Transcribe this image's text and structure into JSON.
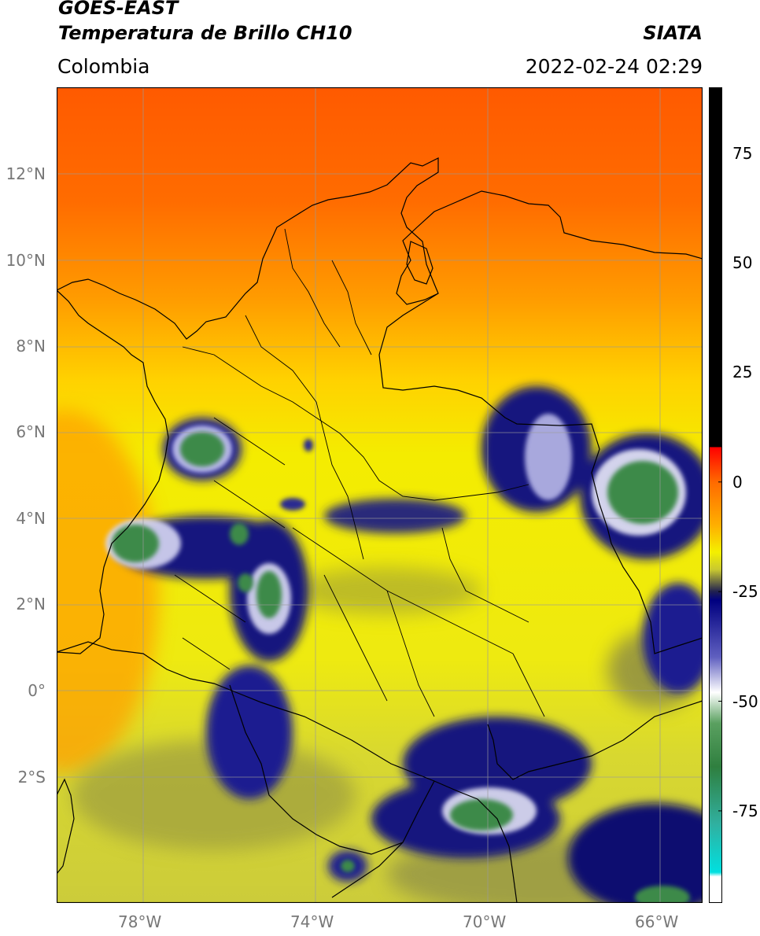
{
  "header": {
    "satellite": "GOES-EAST",
    "product": "Temperatura de Brillo CH10",
    "org": "SIATA",
    "region": "Colombia",
    "timestamp": "2022-02-24 02:29"
  },
  "axes": {
    "lat_labels": [
      "12°N",
      "10°N",
      "8°N",
      "6°N",
      "4°N",
      "2°N",
      "0°",
      "2°S"
    ],
    "lon_labels": [
      "78°W",
      "74°W",
      "70°W",
      "66°W"
    ]
  },
  "colorbar": {
    "tick_labels": [
      "75",
      "50",
      "25",
      "0",
      "-25",
      "-50",
      "-75"
    ],
    "tick_values": [
      75,
      50,
      25,
      0,
      -25,
      -50,
      -75
    ],
    "range": [
      -96,
      90
    ],
    "stops": [
      {
        "v": 90,
        "c": "#000000"
      },
      {
        "v": 8,
        "c": "#000000"
      },
      {
        "v": 7.9,
        "c": "#ff0000"
      },
      {
        "v": 0,
        "c": "#ff6a00"
      },
      {
        "v": -10,
        "c": "#ffb000"
      },
      {
        "v": -16,
        "c": "#f4f000"
      },
      {
        "v": -20,
        "c": "#c8c830"
      },
      {
        "v": -25,
        "c": "#202050"
      },
      {
        "v": -27,
        "c": "#000080"
      },
      {
        "v": -40,
        "c": "#6060c0"
      },
      {
        "v": -48,
        "c": "#ffffff"
      },
      {
        "v": -55,
        "c": "#5aa060"
      },
      {
        "v": -65,
        "c": "#2f7f3f"
      },
      {
        "v": -78,
        "c": "#30b0a0"
      },
      {
        "v": -89,
        "c": "#00e0e0"
      },
      {
        "v": -90,
        "c": "#ffffff"
      },
      {
        "v": -96,
        "c": "#ffffff"
      }
    ]
  },
  "colors": {
    "warm_ocean": "#ff6a00",
    "land_clear": "#f0e400",
    "cloud_top": "#000080",
    "cold_core": "#3c8a4a"
  }
}
